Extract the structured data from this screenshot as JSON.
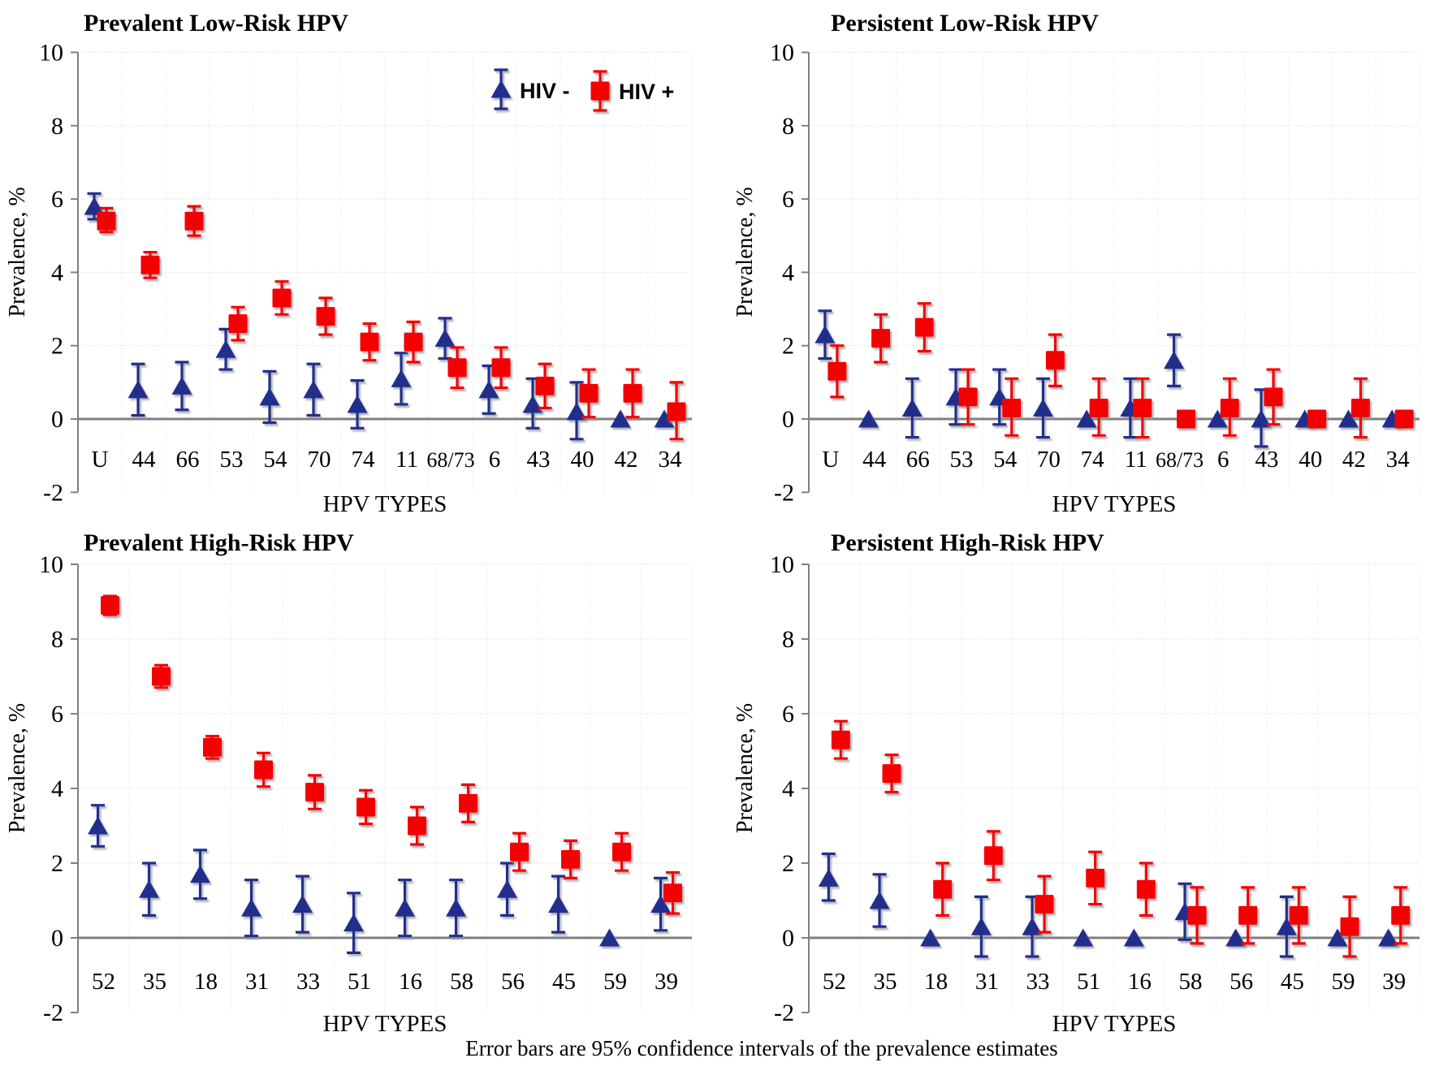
{
  "footnote": "Error bars are 95% confidence intervals of the prevalence estimates",
  "legend": {
    "items": [
      {
        "label": "HIV -",
        "marker": "triangle",
        "color": "#202e8c"
      },
      {
        "label": "HIV +",
        "marker": "square",
        "color": "#f40404"
      }
    ]
  },
  "colors": {
    "hiv_negative": "#202e8c",
    "hiv_positive": "#f40404",
    "zero_line": "#7f7f7f",
    "axis_line": "#808080",
    "h_gridline": "#d9dde3",
    "v_gridline": "#e3e7ef"
  },
  "chart_data": [
    {
      "id": "prevalent-low-risk-hpv",
      "type": "scatter",
      "title": "Prevalent Low-Risk HPV",
      "xlabel": "HPV TYPES",
      "ylabel": "Prevalence, %",
      "ylim": [
        -2,
        10
      ],
      "yticks": [
        10,
        8,
        6,
        4,
        2,
        0,
        -2
      ],
      "grid": true,
      "legend": true,
      "categories": [
        "U",
        "44",
        "66",
        "53",
        "54",
        "70",
        "74",
        "11",
        "68/73",
        "6",
        "43",
        "40",
        "42",
        "34"
      ],
      "series": [
        {
          "name": "HIV -",
          "marker": "triangle",
          "color": "#202e8c",
          "values": [
            5.8,
            0.8,
            0.9,
            1.9,
            0.6,
            0.8,
            0.4,
            1.1,
            2.2,
            0.8,
            0.4,
            0.2,
            0,
            0
          ],
          "ci_low": [
            5.45,
            0.1,
            0.25,
            1.35,
            -0.1,
            0.1,
            -0.25,
            0.4,
            1.65,
            0.15,
            -0.25,
            -0.55,
            null,
            null
          ],
          "ci_high": [
            6.15,
            1.5,
            1.55,
            2.45,
            1.3,
            1.5,
            1.05,
            1.8,
            2.75,
            1.45,
            1.1,
            1.0,
            null,
            null
          ]
        },
        {
          "name": "HIV +",
          "marker": "square",
          "color": "#f40404",
          "values": [
            5.4,
            4.2,
            5.4,
            2.6,
            3.3,
            2.8,
            2.1,
            2.1,
            1.4,
            1.4,
            0.9,
            0.7,
            0.7,
            0.2
          ],
          "ci_low": [
            5.1,
            3.85,
            5.0,
            2.15,
            2.85,
            2.3,
            1.6,
            1.55,
            0.85,
            0.85,
            0.3,
            0.05,
            0.05,
            -0.55
          ],
          "ci_high": [
            5.75,
            4.55,
            5.8,
            3.05,
            3.75,
            3.3,
            2.6,
            2.65,
            1.95,
            1.95,
            1.5,
            1.35,
            1.35,
            1.0
          ]
        }
      ]
    },
    {
      "id": "persistent-low-risk-hpv",
      "type": "scatter",
      "title": "Persistent Low-Risk HPV",
      "xlabel": "HPV TYPES",
      "ylabel": "Prevalence, %",
      "ylim": [
        -2,
        10
      ],
      "yticks": [
        10,
        8,
        6,
        4,
        2,
        0,
        -2
      ],
      "grid": true,
      "legend": false,
      "categories": [
        "U",
        "44",
        "66",
        "53",
        "54",
        "70",
        "74",
        "11",
        "68/73",
        "6",
        "43",
        "40",
        "42",
        "34"
      ],
      "series": [
        {
          "name": "HIV -",
          "marker": "triangle",
          "color": "#202e8c",
          "values": [
            2.3,
            0,
            0.3,
            0.6,
            0.6,
            0.3,
            0,
            0.3,
            1.6,
            0,
            0,
            0,
            0,
            0
          ],
          "ci_low": [
            1.65,
            null,
            -0.5,
            -0.15,
            -0.15,
            -0.5,
            null,
            -0.5,
            0.9,
            null,
            -0.75,
            null,
            null,
            null
          ],
          "ci_high": [
            2.95,
            null,
            1.1,
            1.35,
            1.35,
            1.1,
            null,
            1.1,
            2.3,
            null,
            0.8,
            null,
            null,
            null
          ]
        },
        {
          "name": "HIV +",
          "marker": "square",
          "color": "#f40404",
          "values": [
            1.3,
            2.2,
            2.5,
            0.6,
            0.3,
            1.6,
            0.3,
            0.3,
            0,
            0.3,
            0.6,
            0,
            0.3,
            0
          ],
          "ci_low": [
            0.6,
            1.55,
            1.85,
            -0.15,
            -0.45,
            0.9,
            -0.45,
            -0.5,
            null,
            -0.45,
            -0.15,
            null,
            -0.5,
            null
          ],
          "ci_high": [
            2.0,
            2.85,
            3.15,
            1.35,
            1.1,
            2.3,
            1.1,
            1.1,
            null,
            1.1,
            1.35,
            null,
            1.1,
            null
          ]
        }
      ]
    },
    {
      "id": "prevalent-high-risk-hpv",
      "type": "scatter",
      "title": "Prevalent High-Risk HPV",
      "xlabel": "HPV TYPES",
      "ylabel": "Prevalence, %",
      "ylim": [
        -2,
        10
      ],
      "yticks": [
        10,
        8,
        6,
        4,
        2,
        0,
        -2
      ],
      "grid": true,
      "legend": false,
      "categories": [
        "52",
        "35",
        "18",
        "31",
        "33",
        "51",
        "16",
        "58",
        "56",
        "45",
        "59",
        "39"
      ],
      "series": [
        {
          "name": "HIV -",
          "marker": "triangle",
          "color": "#202e8c",
          "values": [
            3.0,
            1.3,
            1.7,
            0.8,
            0.9,
            0.4,
            0.8,
            0.8,
            1.3,
            0.9,
            0,
            0.9
          ],
          "ci_low": [
            2.45,
            0.6,
            1.05,
            0.05,
            0.15,
            -0.4,
            0.05,
            0.05,
            0.6,
            0.15,
            null,
            0.2
          ],
          "ci_high": [
            3.55,
            2.0,
            2.35,
            1.55,
            1.65,
            1.2,
            1.55,
            1.55,
            2.0,
            1.65,
            null,
            1.6
          ]
        },
        {
          "name": "HIV +",
          "marker": "square",
          "color": "#f40404",
          "values": [
            8.9,
            7.0,
            5.1,
            4.5,
            3.9,
            3.5,
            3.0,
            3.6,
            2.3,
            2.1,
            2.3,
            1.2
          ],
          "ci_low": [
            8.65,
            6.7,
            4.8,
            4.05,
            3.45,
            3.05,
            2.5,
            3.1,
            1.8,
            1.6,
            1.8,
            0.65
          ],
          "ci_high": [
            9.15,
            7.3,
            5.4,
            4.95,
            4.35,
            3.95,
            3.5,
            4.1,
            2.8,
            2.6,
            2.8,
            1.75
          ]
        }
      ]
    },
    {
      "id": "persistent-high-risk-hpv",
      "type": "scatter",
      "title": "Persistent High-Risk HPV",
      "xlabel": "HPV TYPES",
      "ylabel": "Prevalence, %",
      "ylim": [
        -2,
        10
      ],
      "yticks": [
        10,
        8,
        6,
        4,
        2,
        0,
        -2
      ],
      "grid": true,
      "legend": false,
      "categories": [
        "52",
        "35",
        "18",
        "31",
        "33",
        "51",
        "16",
        "58",
        "56",
        "45",
        "59",
        "39"
      ],
      "series": [
        {
          "name": "HIV -",
          "marker": "triangle",
          "color": "#202e8c",
          "values": [
            1.6,
            1.0,
            0,
            0.3,
            0.3,
            0,
            0,
            0.7,
            0,
            0.3,
            0,
            0
          ],
          "ci_low": [
            1.0,
            0.3,
            null,
            -0.5,
            -0.5,
            null,
            null,
            -0.05,
            null,
            -0.5,
            null,
            null
          ],
          "ci_high": [
            2.25,
            1.7,
            null,
            1.1,
            1.1,
            null,
            null,
            1.45,
            null,
            1.1,
            null,
            null
          ]
        },
        {
          "name": "HIV +",
          "marker": "square",
          "color": "#f40404",
          "values": [
            5.3,
            4.4,
            1.3,
            2.2,
            0.9,
            1.6,
            1.3,
            0.6,
            0.6,
            0.6,
            0.3,
            0.6
          ],
          "ci_low": [
            4.8,
            3.9,
            0.6,
            1.55,
            0.15,
            0.9,
            0.6,
            -0.15,
            -0.15,
            -0.15,
            -0.5,
            -0.15
          ],
          "ci_high": [
            5.8,
            4.9,
            2.0,
            2.85,
            1.65,
            2.3,
            2.0,
            1.35,
            1.35,
            1.35,
            1.1,
            1.35
          ]
        }
      ]
    }
  ]
}
